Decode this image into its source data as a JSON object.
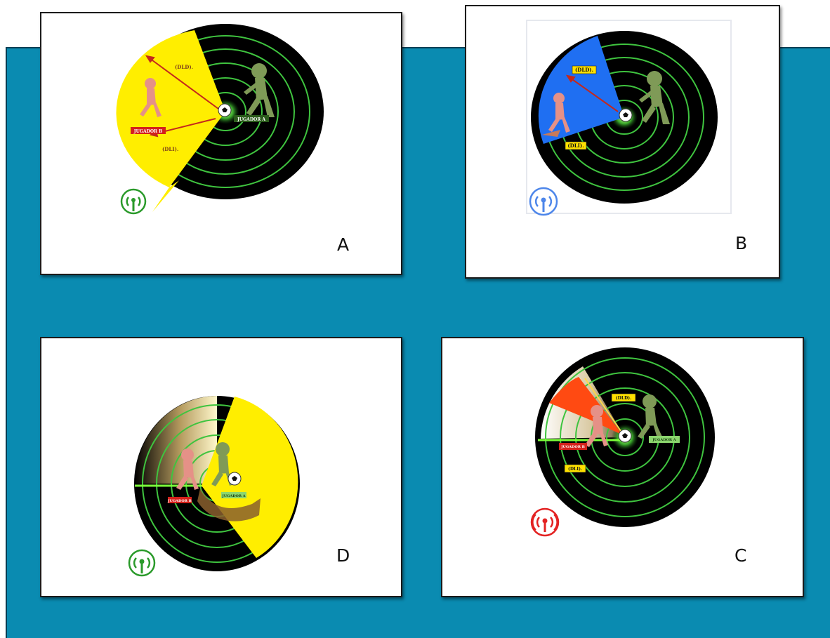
{
  "panels": [
    {
      "id": "A",
      "letter": "A",
      "label_dld": "(DLD).",
      "label_dli": "(DLI).",
      "player_a": "JUGADOR A",
      "player_b": "JUGADOR B",
      "sector_color": "#ffee00",
      "icon_color": "#2a9a2a"
    },
    {
      "id": "B",
      "letter": "B",
      "label_dld": "(DLD).",
      "label_dli": "(DLI).",
      "sector_color": "#1f6ff2",
      "icon_color": "#4d86ea"
    },
    {
      "id": "D",
      "letter": "D",
      "player_a": "JUGADOR A",
      "player_b": "JUGADOR B",
      "sector_color": "#ffee00",
      "icon_color": "#2a9a2a"
    },
    {
      "id": "C",
      "letter": "C",
      "label_dld": "(DLD).",
      "label_dli": "(DLI).",
      "player_a": "JUGADOR A",
      "player_b": "JUGADOR B",
      "sector_color": "#ff4a12",
      "icon_color": "#e32222"
    }
  ],
  "colors": {
    "background": "#0a8bb1",
    "radar_fill": "#000000",
    "ring_color": "#3fc43f",
    "player_a_color": "#7f9a57",
    "player_b_color": "#e59187",
    "arrow_color": "#c4281c"
  }
}
